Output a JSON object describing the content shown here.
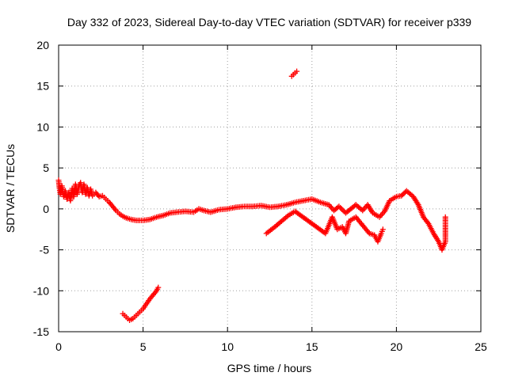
{
  "chart_data": {
    "type": "scatter",
    "title": "Day 332 of 2023, Sidereal Day-to-day VTEC variation (SDTVAR) for receiver p339",
    "xlabel": "GPS time / hours",
    "ylabel": "SDTVAR / TECUs",
    "xlim": [
      0,
      25
    ],
    "ylim": [
      -15,
      20
    ],
    "xticks": [
      0,
      5,
      10,
      15,
      20,
      25
    ],
    "yticks": [
      -15,
      -10,
      -5,
      0,
      5,
      10,
      15,
      20
    ],
    "xtick_labels": [
      "0",
      "5",
      "10",
      "15",
      "20",
      "25"
    ],
    "ytick_labels": [
      "-15",
      "-10",
      "-5",
      "0",
      "5",
      "10",
      "15",
      "20"
    ],
    "grid": true,
    "marker": "+",
    "colors": {
      "series": "#ff0000",
      "grid": "#a0a0a0",
      "axis": "#000000"
    },
    "series": [
      {
        "name": "SDTVAR main trace",
        "points": [
          [
            0.0,
            3.5
          ],
          [
            0.05,
            2.5
          ],
          [
            0.1,
            1.8
          ],
          [
            0.2,
            2.8
          ],
          [
            0.3,
            1.5
          ],
          [
            0.4,
            2.2
          ],
          [
            0.5,
            1.2
          ],
          [
            0.6,
            2.0
          ],
          [
            0.7,
            1.0
          ],
          [
            0.8,
            2.5
          ],
          [
            0.9,
            1.5
          ],
          [
            1.0,
            3.0
          ],
          [
            1.1,
            1.8
          ],
          [
            1.2,
            2.8
          ],
          [
            1.3,
            3.2
          ],
          [
            1.4,
            2.0
          ],
          [
            1.5,
            3.0
          ],
          [
            1.6,
            1.8
          ],
          [
            1.7,
            2.6
          ],
          [
            1.8,
            1.6
          ],
          [
            1.9,
            2.4
          ],
          [
            2.0,
            1.6
          ],
          [
            2.2,
            2.0
          ],
          [
            2.4,
            1.5
          ],
          [
            2.6,
            1.6
          ],
          [
            2.8,
            1.2
          ],
          [
            3.0,
            0.8
          ],
          [
            3.2,
            0.3
          ],
          [
            3.4,
            -0.2
          ],
          [
            3.6,
            -0.6
          ],
          [
            3.8,
            -0.9
          ],
          [
            4.0,
            -1.1
          ],
          [
            4.3,
            -1.3
          ],
          [
            4.6,
            -1.4
          ],
          [
            5.0,
            -1.4
          ],
          [
            5.4,
            -1.3
          ],
          [
            5.8,
            -1.0
          ],
          [
            6.2,
            -0.8
          ],
          [
            6.6,
            -0.5
          ],
          [
            7.0,
            -0.4
          ],
          [
            7.5,
            -0.3
          ],
          [
            8.0,
            -0.4
          ],
          [
            8.3,
            0.0
          ],
          [
            8.6,
            -0.2
          ],
          [
            9.0,
            -0.4
          ],
          [
            9.5,
            -0.1
          ],
          [
            10.0,
            0.0
          ],
          [
            10.5,
            0.2
          ],
          [
            11.0,
            0.3
          ],
          [
            11.5,
            0.3
          ],
          [
            12.0,
            0.4
          ],
          [
            12.5,
            0.2
          ],
          [
            13.0,
            0.3
          ],
          [
            13.5,
            0.5
          ],
          [
            14.0,
            0.8
          ],
          [
            14.5,
            1.0
          ],
          [
            15.0,
            1.2
          ],
          [
            15.5,
            0.8
          ],
          [
            16.0,
            0.5
          ],
          [
            16.3,
            -0.2
          ],
          [
            16.6,
            0.3
          ],
          [
            17.0,
            -0.5
          ],
          [
            17.3,
            0.0
          ],
          [
            17.6,
            0.5
          ],
          [
            18.0,
            -0.2
          ],
          [
            18.3,
            0.5
          ],
          [
            18.6,
            -0.5
          ],
          [
            19.0,
            -1.0
          ],
          [
            19.3,
            -0.3
          ],
          [
            19.6,
            1.0
          ],
          [
            20.0,
            1.5
          ],
          [
            20.3,
            1.6
          ],
          [
            20.6,
            2.2
          ],
          [
            21.0,
            1.5
          ],
          [
            21.3,
            0.5
          ],
          [
            21.6,
            -1.0
          ],
          [
            21.9,
            -1.8
          ],
          [
            22.2,
            -3.0
          ],
          [
            22.5,
            -4.0
          ],
          [
            22.7,
            -5.0
          ],
          [
            22.9,
            -4.0
          ],
          [
            22.9,
            -1.0
          ]
        ]
      },
      {
        "name": "SDTVAR lower branches",
        "points": [
          [
            12.3,
            -3.0
          ],
          [
            12.8,
            -2.2
          ],
          [
            13.2,
            -1.5
          ],
          [
            13.6,
            -0.8
          ],
          [
            14.0,
            -0.3
          ],
          [
            15.8,
            -3.0
          ],
          [
            16.0,
            -2.0
          ],
          [
            16.2,
            -1.0
          ],
          [
            16.5,
            -2.5
          ],
          [
            16.8,
            -2.2
          ],
          [
            17.0,
            -3.0
          ],
          [
            17.2,
            -1.5
          ],
          [
            17.6,
            -1.0
          ],
          [
            18.0,
            -2.0
          ],
          [
            18.4,
            -3.0
          ],
          [
            18.7,
            -3.2
          ],
          [
            18.9,
            -4.0
          ],
          [
            19.1,
            -3.0
          ],
          [
            19.2,
            -2.5
          ]
        ]
      },
      {
        "name": "SDTVAR early descending arc",
        "points": [
          [
            3.8,
            -12.8
          ],
          [
            4.0,
            -13.2
          ],
          [
            4.2,
            -13.6
          ],
          [
            4.4,
            -13.4
          ],
          [
            4.6,
            -13.0
          ],
          [
            4.8,
            -12.6
          ],
          [
            5.0,
            -12.2
          ],
          [
            5.2,
            -11.6
          ],
          [
            5.4,
            -11.0
          ],
          [
            5.6,
            -10.5
          ],
          [
            5.8,
            -10.0
          ],
          [
            5.9,
            -9.6
          ]
        ]
      },
      {
        "name": "SDTVAR outlier",
        "points": [
          [
            13.8,
            16.2
          ],
          [
            13.9,
            16.4
          ],
          [
            14.0,
            16.6
          ],
          [
            14.1,
            16.8
          ]
        ]
      }
    ]
  }
}
